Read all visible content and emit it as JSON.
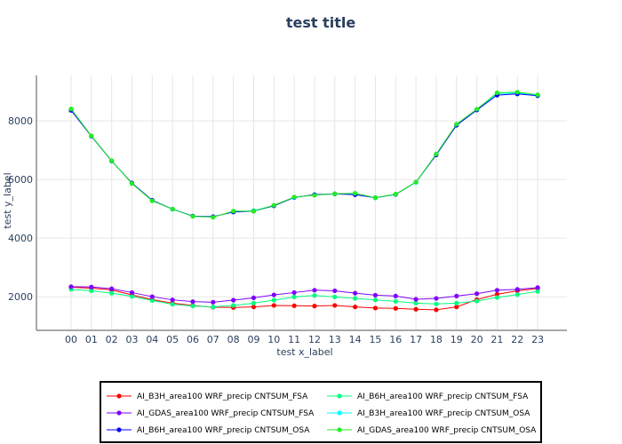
{
  "chart_data": {
    "type": "line",
    "title": "test title",
    "xlabel": "test x_label",
    "ylabel": "test y_label",
    "categories": [
      "00",
      "01",
      "02",
      "03",
      "04",
      "05",
      "06",
      "07",
      "08",
      "09",
      "10",
      "11",
      "12",
      "13",
      "14",
      "15",
      "16",
      "17",
      "18",
      "19",
      "20",
      "21",
      "22",
      "23"
    ],
    "ylim": [
      850,
      9550
    ],
    "yticks": [
      2000,
      4000,
      6000,
      8000
    ],
    "ytick_labels": [
      "2000",
      "4000",
      "6000",
      "8000"
    ],
    "grid": true,
    "legend_position": "bottom",
    "series": [
      {
        "name": "AI_B3H_area100 WRF_precip CNTSUM_FSA",
        "color": "#ff0000",
        "values": [
          2320,
          2290,
          2230,
          2060,
          1900,
          1780,
          1700,
          1640,
          1630,
          1650,
          1700,
          1690,
          1680,
          1700,
          1650,
          1610,
          1600,
          1570,
          1550,
          1650,
          1900,
          2080,
          2200,
          2280
        ]
      },
      {
        "name": "AI_B6H_area100 WRF_precip CNTSUM_FSA",
        "color": "#00ff7f",
        "values": [
          2250,
          2200,
          2120,
          2010,
          1870,
          1740,
          1680,
          1650,
          1700,
          1780,
          1880,
          1990,
          2040,
          1990,
          1940,
          1890,
          1840,
          1780,
          1750,
          1780,
          1850,
          1970,
          2070,
          2180
        ]
      },
      {
        "name": "AI_GDAS_area100 WRF_precip CNTSUM_FSA",
        "color": "#7f00ff",
        "values": [
          2340,
          2330,
          2270,
          2140,
          2000,
          1890,
          1830,
          1810,
          1880,
          1960,
          2060,
          2140,
          2220,
          2200,
          2120,
          2050,
          2020,
          1910,
          1940,
          2020,
          2100,
          2220,
          2250,
          2310
        ]
      },
      {
        "name": "AI_B3H_area100 WRF_precip CNTSUM_OSA",
        "color": "#00ffff",
        "values": [
          8380,
          7480,
          6630,
          5870,
          5280,
          4980,
          4750,
          4720,
          4900,
          4940,
          5110,
          5380,
          5480,
          5500,
          5520,
          5370,
          5490,
          5900,
          6860,
          7870,
          8380,
          8930,
          8950,
          8880
        ]
      },
      {
        "name": "AI_B6H_area100 WRF_precip CNTSUM_OSA",
        "color": "#0000ff",
        "values": [
          8360,
          7480,
          6630,
          5880,
          5290,
          4990,
          4750,
          4730,
          4890,
          4920,
          5100,
          5390,
          5480,
          5510,
          5480,
          5380,
          5490,
          5910,
          6840,
          7850,
          8370,
          8880,
          8920,
          8860
        ]
      },
      {
        "name": "AI_GDAS_area100 WRF_precip CNTSUM_OSA",
        "color": "#22ee22",
        "values": [
          8410,
          7490,
          6640,
          5860,
          5270,
          4990,
          4740,
          4710,
          4920,
          4920,
          5120,
          5400,
          5460,
          5510,
          5530,
          5380,
          5500,
          5910,
          6870,
          7890,
          8400,
          8960,
          8980,
          8890
        ]
      }
    ]
  }
}
